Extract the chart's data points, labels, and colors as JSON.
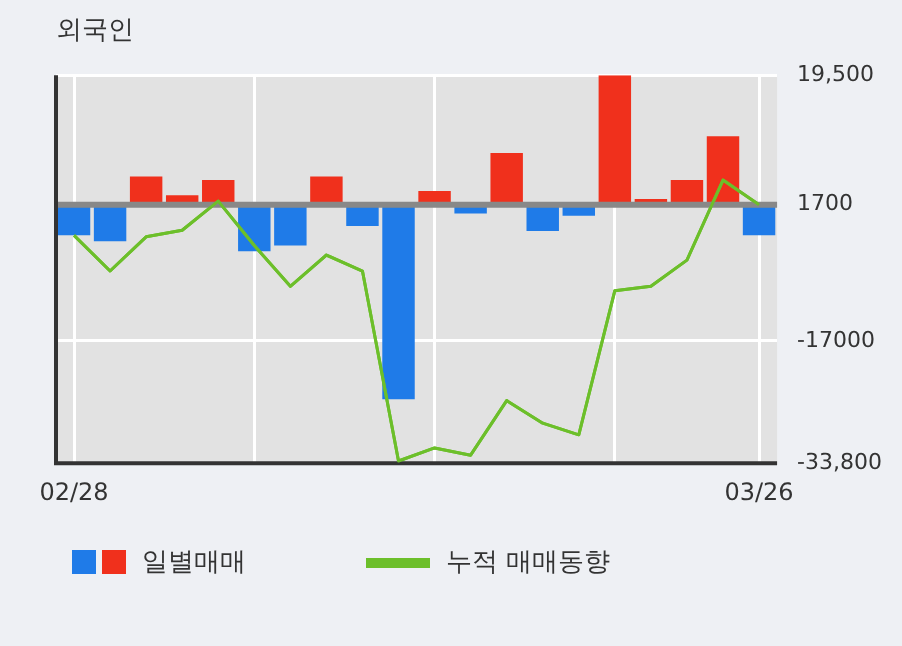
{
  "chart_data": {
    "type": "bar",
    "title": "외국인",
    "categories": [
      "02/28",
      null,
      null,
      null,
      null,
      null,
      null,
      null,
      null,
      null,
      null,
      null,
      null,
      null,
      null,
      null,
      null,
      null,
      null,
      "03/26"
    ],
    "series": [
      {
        "name": "일별매매",
        "base": [
          1700,
          1700,
          1700,
          1700,
          1700,
          1700,
          1700,
          1700,
          1700,
          1700,
          1700,
          1700,
          1700,
          1700,
          1700,
          1700,
          1700,
          1700,
          1700,
          1700
        ],
        "values": [
          -4200,
          -5000,
          3900,
          1300,
          3400,
          -6400,
          -5600,
          3900,
          -2900,
          -26700,
          1900,
          -1200,
          7100,
          -3600,
          -1500,
          17800,
          800,
          3400,
          9400,
          -4200
        ],
        "colors": [
          "#1f7be8",
          "#1f7be8",
          "#f0301c",
          "#f0301c",
          "#f0301c",
          "#1f7be8",
          "#1f7be8",
          "#f0301c",
          "#1f7be8",
          "#1f7be8",
          "#f0301c",
          "#1f7be8",
          "#f0301c",
          "#1f7be8",
          "#1f7be8",
          "#f0301c",
          "#f0301c",
          "#f0301c",
          "#f0301c",
          "#1f7be8"
        ]
      },
      {
        "name": "누적 매매동향",
        "type": "line",
        "color": "#6cbf2a",
        "values": [
          -2500,
          -7400,
          -2700,
          -1800,
          2200,
          -3900,
          -9500,
          -5200,
          -7400,
          -33500,
          -31700,
          -32700,
          -25200,
          -28300,
          -29900,
          -10100,
          -9500,
          -5900,
          5100,
          1700
        ]
      }
    ],
    "ylim": [
      -33800,
      19500
    ],
    "yticks": [
      {
        "value": 19500,
        "label": "19,500"
      },
      {
        "value": 1700,
        "label": "1700"
      },
      {
        "value": -17000,
        "label": "-17000"
      },
      {
        "value": -33800,
        "label": "-33,800"
      }
    ],
    "ref_lines": [
      {
        "axis": "y",
        "value": 1700,
        "color": "#888888"
      }
    ],
    "grid": true,
    "legend": "bottom",
    "marker": "none",
    "line_style": "solid"
  }
}
